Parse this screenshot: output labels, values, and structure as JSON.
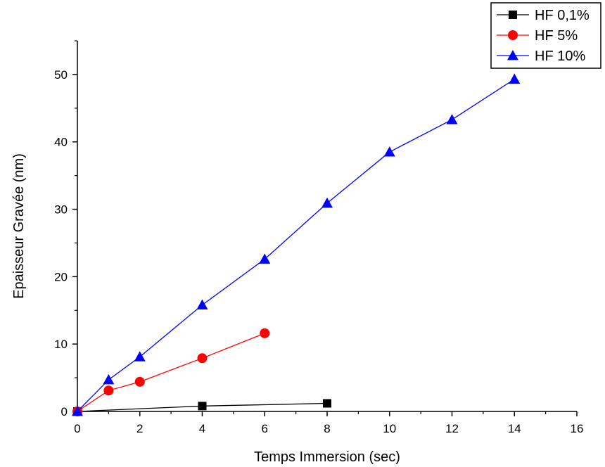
{
  "chart_data": {
    "type": "line",
    "title": "",
    "xlabel": "Temps Immersion (sec)",
    "ylabel": "Epaisseur Gravée (nm)",
    "xlim": [
      0,
      16
    ],
    "ylim": [
      0,
      55
    ],
    "xticks": [
      0,
      2,
      4,
      6,
      8,
      10,
      12,
      14,
      16
    ],
    "yticks": [
      0,
      10,
      20,
      30,
      40,
      50
    ],
    "grid": false,
    "legend_position": "top-right",
    "series": [
      {
        "name": "HF 0,1%",
        "color": "#000000",
        "marker": "square",
        "x": [
          0,
          4,
          8
        ],
        "y": [
          0,
          0.8,
          1.2
        ]
      },
      {
        "name": "HF 5%",
        "color": "#ff0000",
        "marker": "circle",
        "x": [
          0,
          1,
          2,
          4,
          6
        ],
        "y": [
          0,
          3.1,
          4.4,
          7.9,
          11.6
        ]
      },
      {
        "name": "HF 10%",
        "color": "#0000ff",
        "marker": "triangle",
        "x": [
          0,
          1,
          2,
          4,
          6,
          8,
          10,
          12,
          14
        ],
        "y": [
          0,
          4.7,
          8.1,
          15.8,
          22.6,
          30.9,
          38.5,
          43.3,
          49.3
        ]
      }
    ]
  }
}
